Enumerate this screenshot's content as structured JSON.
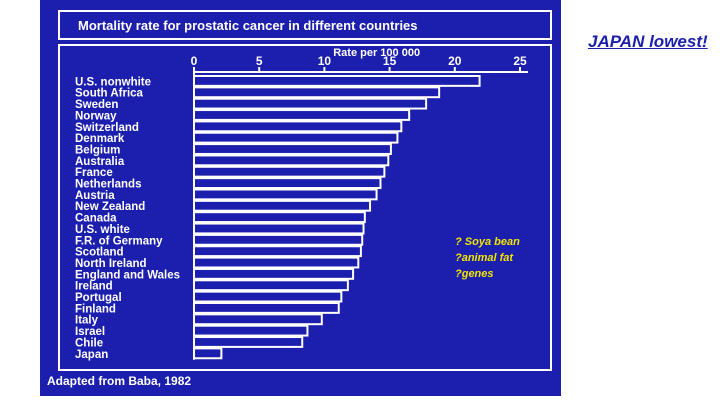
{
  "headline": "JAPAN lowest!",
  "notes": [
    "? Soya bean",
    "?animal fat",
    "?genes"
  ],
  "credit": "Adapted from Baba, 1982",
  "colors": {
    "panel": "#1c1fae",
    "foreground": "#ffffff",
    "headline": "#1c1fae",
    "notes": "#f2e600"
  },
  "chart_data": {
    "type": "bar",
    "orientation": "horizontal",
    "title": "Mortality rate for prostatic cancer in different countries",
    "xlabel": "Rate per 100 000",
    "ylabel": "",
    "xlim": [
      0,
      25
    ],
    "ticks": [
      "0",
      "5",
      "10",
      "15",
      "20",
      "25"
    ],
    "grid": false,
    "categories": [
      "U.S. nonwhite",
      "South Africa",
      "Sweden",
      "Norway",
      "Switzerland",
      "Denmark",
      "Belgium",
      "Australia",
      "France",
      "Netherlands",
      "Austria",
      "New Zealand",
      "Canada",
      "U.S. white",
      "F.R. of Germany",
      "Scotland",
      "North Ireland",
      "England and Wales",
      "Ireland",
      "Portugal",
      "Finland",
      "Italy",
      "Israel",
      "Chile",
      "Japan"
    ],
    "values": [
      21.9,
      18.8,
      17.8,
      16.5,
      15.9,
      15.6,
      15.1,
      14.9,
      14.6,
      14.3,
      14.0,
      13.5,
      13.1,
      13.0,
      12.9,
      12.8,
      12.6,
      12.2,
      11.8,
      11.3,
      11.1,
      9.8,
      8.7,
      8.3,
      2.1
    ]
  }
}
